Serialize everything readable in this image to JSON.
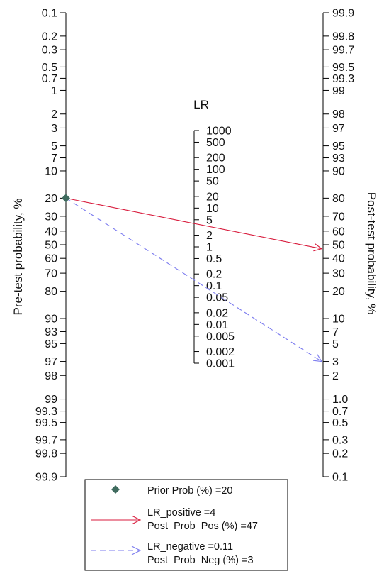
{
  "chart_data": {
    "type": "nomogram",
    "title": "",
    "left_axis": {
      "label": "Pre-test probability, %",
      "ticks": [
        "0.1",
        "0.2",
        "0.3",
        "0.5",
        "0.7",
        "1",
        "2",
        "3",
        "5",
        "7",
        "10",
        "20",
        "30",
        "40",
        "50",
        "60",
        "70",
        "80",
        "90",
        "93",
        "95",
        "97",
        "98",
        "99",
        "99.3",
        "99.5",
        "99.7",
        "99.8",
        "99.9"
      ]
    },
    "center_axis": {
      "label": "LR",
      "ticks": [
        "1000",
        "500",
        "200",
        "100",
        "50",
        "20",
        "10",
        "5",
        "2",
        "1",
        "0.5",
        "0.2",
        "0.1",
        "0.05",
        "0.02",
        "0.01",
        "0.005",
        "0.002",
        "0.001"
      ]
    },
    "right_axis": {
      "label": "Post-test probability, %",
      "ticks": [
        "99.9",
        "99.8",
        "99.7",
        "99.5",
        "99.3",
        "99",
        "98",
        "97",
        "95",
        "93",
        "90",
        "80",
        "70",
        "60",
        "50",
        "40",
        "30",
        "20",
        "10",
        "7",
        "5",
        "3",
        "2",
        "1.0",
        "0.7",
        "0.5",
        "0.3",
        "0.2",
        "0.1"
      ]
    },
    "prior_prob": 20,
    "series": [
      {
        "name": "LR_positive",
        "lr": 4,
        "post_prob": 47,
        "color": "#d81b3c",
        "dash": false
      },
      {
        "name": "LR_negative",
        "lr": 0.11,
        "post_prob": 3,
        "color": "#7b7bef",
        "dash": true
      }
    ],
    "prior_color": "#3f6b5e",
    "legend": {
      "position": "bottom",
      "items": [
        {
          "marker": "diamond",
          "lines": [
            "Prior Prob (%) =20"
          ]
        },
        {
          "marker": "solid-arrow",
          "lines": [
            "LR_positive =4",
            "Post_Prob_Pos (%) =47"
          ]
        },
        {
          "marker": "dashed-arrow",
          "lines": [
            "LR_negative =0.11",
            "Post_Prob_Neg (%) =3"
          ]
        }
      ]
    }
  }
}
